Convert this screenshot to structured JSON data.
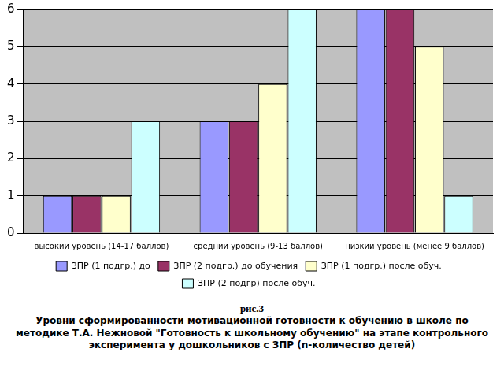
{
  "chart_data": {
    "type": "bar",
    "title": "рис.3",
    "subtitle": "Уровни сформированности мотивационной готовности к обучению в школе по методике Т.А. Нежновой \"Готовность к школьному обучению\" на этапе контрольного эксперимента у дошкольников с ЗПР (n-количество детей)",
    "categories": [
      "высокий уровень (14-17 баллов)",
      "средний уровень (9-13 баллов)",
      "низкий уровень (менее 9 баллов)"
    ],
    "series": [
      {
        "name": "ЗПР (1 подгр.) до",
        "color": "#9999ff",
        "values": [
          1,
          3,
          6
        ]
      },
      {
        "name": "ЗПР (2 подгр.) до обучения",
        "color": "#993366",
        "values": [
          1,
          3,
          6
        ]
      },
      {
        "name": "ЗПР (1 подгр.) после обуч.",
        "color": "#ffffcc",
        "values": [
          1,
          4,
          5
        ]
      },
      {
        "name": "ЗПР (2 подгр) после обуч.",
        "color": "#ccffff",
        "values": [
          3,
          6,
          1
        ]
      }
    ],
    "ylim": [
      0,
      6
    ],
    "yticks": [
      0,
      1,
      2,
      3,
      4,
      5,
      6
    ],
    "grid": true,
    "legend": "bottom"
  }
}
